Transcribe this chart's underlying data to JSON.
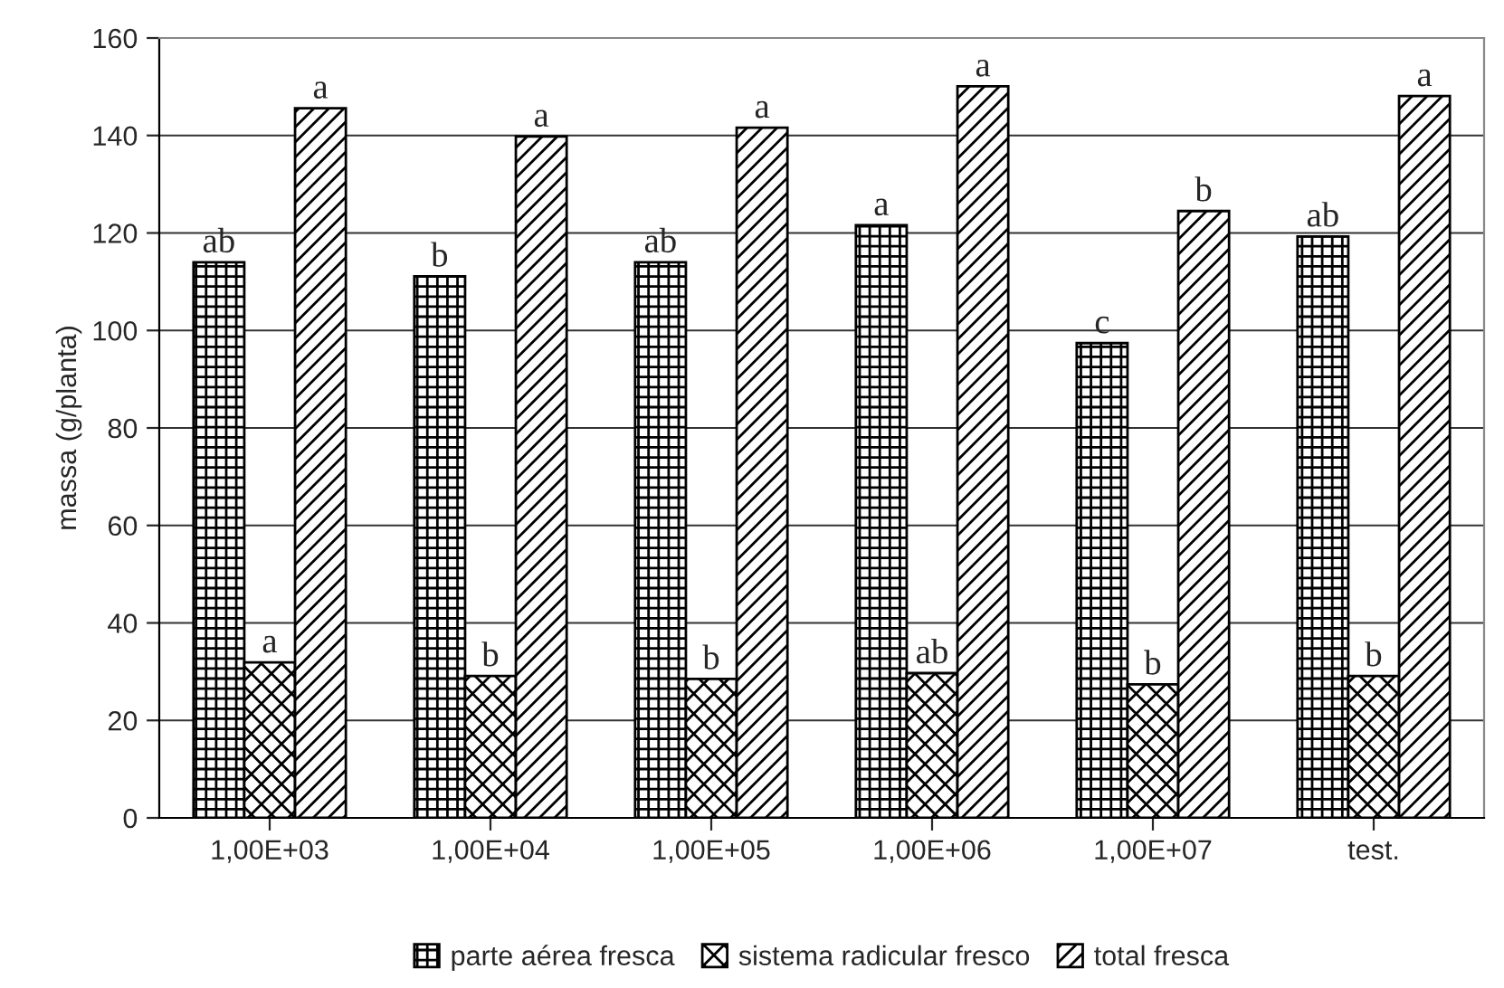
{
  "chart_data": {
    "type": "bar",
    "ylabel": "massa (g/planta)",
    "categories": [
      "1,00E+03",
      "1,00E+04",
      "1,00E+05",
      "1,00E+06",
      "1,00E+07",
      "test."
    ],
    "series": [
      {
        "name": "parte aérea fresca",
        "color": "#000000",
        "values": [
          114.0,
          111.1,
          114.0,
          121.6,
          97.4,
          119.3
        ],
        "value_labels": [
          "ab",
          "b",
          "ab",
          "a",
          "c",
          "ab"
        ]
      },
      {
        "name": "sistema radicular fresco",
        "color": "#000000",
        "values": [
          31.9,
          29.1,
          28.5,
          29.7,
          27.4,
          29.1
        ],
        "value_labels": [
          "a",
          "b",
          "b",
          "ab",
          "b",
          "b"
        ]
      },
      {
        "name": "total fresca",
        "color": "#000000",
        "values": [
          145.6,
          139.8,
          141.6,
          150.1,
          124.5,
          148.1
        ],
        "value_labels": [
          "a",
          "a",
          "a",
          "a",
          "b",
          "a"
        ]
      }
    ],
    "ylim": [
      0,
      160
    ],
    "yticks": [
      0,
      20,
      40,
      60,
      80,
      100,
      120,
      140,
      160
    ],
    "grid": "y",
    "legend": "bottom"
  }
}
